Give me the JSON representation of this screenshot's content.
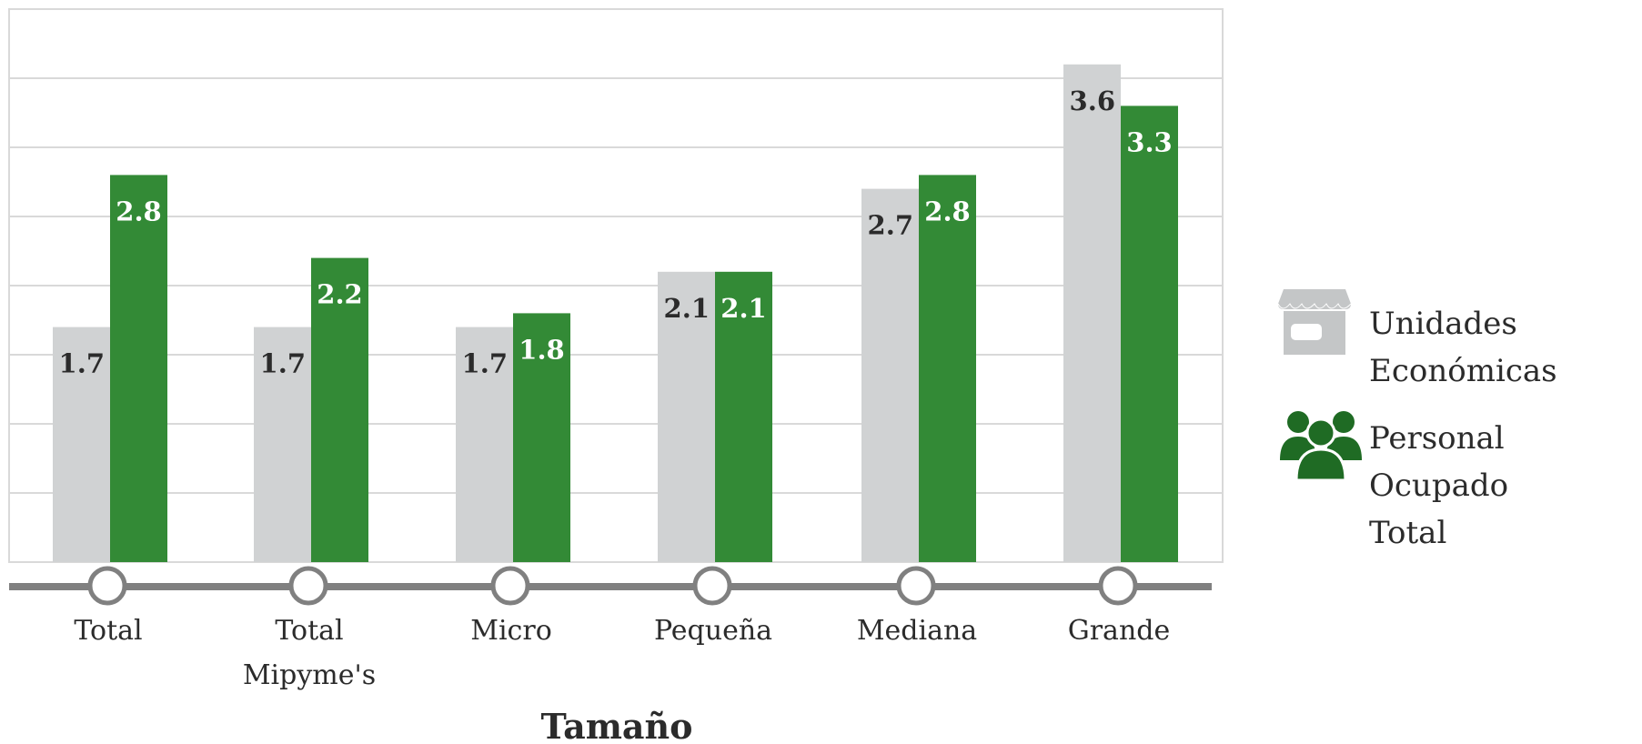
{
  "chart_data": {
    "type": "bar",
    "categories": [
      "Total",
      "Total\nMipyme's",
      "Micro",
      "Pequeña",
      "Mediana",
      "Grande"
    ],
    "series": [
      {
        "name": "Unidades Económicas",
        "values": [
          1.7,
          1.7,
          1.7,
          2.1,
          2.7,
          3.6
        ],
        "color": "#d0d2d3"
      },
      {
        "name": "Personal Ocupado Total",
        "values": [
          2.8,
          2.2,
          1.8,
          2.1,
          2.8,
          3.3
        ],
        "color": "#338a36"
      }
    ],
    "data_labels": {
      "unidades": [
        "1.7",
        "1.7",
        "1.7",
        "2.1",
        "2.7",
        "3.6"
      ],
      "personal": [
        "2.8",
        "2.2",
        "1.8",
        "2.1",
        "2.8",
        "3.3"
      ]
    },
    "xlabel": "Tamaño",
    "ylim": [
      0,
      4
    ],
    "grid": true,
    "legend_position": "right",
    "colors": {
      "axis": "#808080",
      "grid": "#d9d9d9",
      "label_dark": "#2b2b2b",
      "label_light": "#ffffff"
    }
  },
  "legend": {
    "items": [
      {
        "label": "Unidades\nEconómicas",
        "icon": "store-icon"
      },
      {
        "label": "Personal Ocupado\nTotal",
        "icon": "people-icon"
      }
    ]
  }
}
